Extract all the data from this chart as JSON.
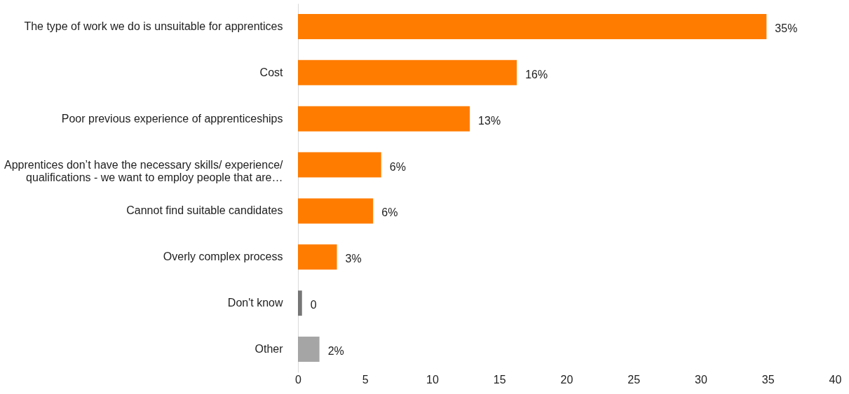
{
  "chart_data": {
    "type": "bar",
    "orientation": "horizontal",
    "categories": [
      "The type of work we do is unsuitable for apprentices",
      "Cost",
      "Poor previous experience of apprenticeships",
      "Apprentices don’t have the necessary skills/ experience/\nqualifications - we want to employ people that are…",
      "Cannot find suitable candidates",
      "Overly complex process",
      "Don't know",
      "Other"
    ],
    "values": [
      34.9,
      16.3,
      12.8,
      6.2,
      5.6,
      2.9,
      0.3,
      1.6
    ],
    "colors": [
      "#ff7c00",
      "#ff7c00",
      "#ff7c00",
      "#ff7c00",
      "#ff7c00",
      "#ff7c00",
      "#767676",
      "#a5a5a5"
    ],
    "value_labels": [
      "35%",
      "16%",
      "13%",
      "6%",
      "6%",
      "3%",
      "0",
      "2%"
    ],
    "xlim": [
      0,
      40
    ],
    "xticks": [
      0,
      5,
      10,
      15,
      20,
      25,
      30,
      35,
      40
    ],
    "grid": false,
    "legend": false
  }
}
